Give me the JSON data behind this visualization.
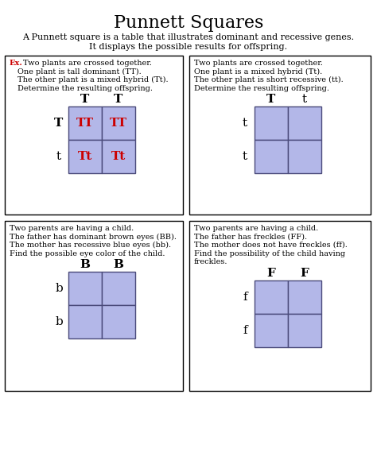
{
  "title": "Punnett Squares",
  "subtitle1": "A Punnett square is a table that illustrates dominant and recessive genes.",
  "subtitle2": "It displays the possible results for offspring.",
  "cell_color": "#b3b7e8",
  "cell_edgecolor": "#4a4a7a",
  "panels": [
    {
      "id": "top_left",
      "is_example": true,
      "ex_label": "Ex.",
      "text_lines": [
        "Two plants are crossed together.",
        "One plant is tall dominant (TT).",
        "The other plant is a mixed hybrid (Tt).",
        "Determine the resulting offspring."
      ],
      "col_headers": [
        "T",
        "T"
      ],
      "row_headers": [
        "T",
        "t"
      ],
      "col_header_bold": [
        true,
        true
      ],
      "row_header_bold": [
        true,
        false
      ],
      "cells": [
        [
          "TT",
          "TT"
        ],
        [
          "Tt",
          "Tt"
        ]
      ],
      "cell_text_color": "#cc0000",
      "cell_text_bold": true
    },
    {
      "id": "top_right",
      "is_example": false,
      "text_lines": [
        "Two plants are crossed together.",
        "One plant is a mixed hybrid (Tt).",
        "The other plant is short recessive (tt).",
        "Determine the resulting offspring."
      ],
      "col_headers": [
        "T",
        "t"
      ],
      "row_headers": [
        "t",
        "t"
      ],
      "col_header_bold": [
        true,
        false
      ],
      "row_header_bold": [
        false,
        false
      ],
      "cells": [
        [
          "",
          ""
        ],
        [
          "",
          ""
        ]
      ],
      "cell_text_color": "#cc0000",
      "cell_text_bold": true
    },
    {
      "id": "bottom_left",
      "is_example": false,
      "text_lines": [
        "Two parents are having a child.",
        "The father has dominant brown eyes (BB).",
        "The mother has recessive blue eyes (bb).",
        "Find the possible eye color of the child."
      ],
      "col_headers": [
        "B",
        "B"
      ],
      "row_headers": [
        "b",
        "b"
      ],
      "col_header_bold": [
        true,
        true
      ],
      "row_header_bold": [
        false,
        false
      ],
      "cells": [
        [
          "",
          ""
        ],
        [
          "",
          ""
        ]
      ],
      "cell_text_color": "#cc0000",
      "cell_text_bold": true
    },
    {
      "id": "bottom_right",
      "is_example": false,
      "text_lines": [
        "Two parents are having a child.",
        "The father has freckles (FF).",
        "The mother does not have freckles (ff).",
        "Find the possibility of the child having",
        "freckles."
      ],
      "col_headers": [
        "F",
        "F"
      ],
      "row_headers": [
        "f",
        "f"
      ],
      "col_header_bold": [
        true,
        true
      ],
      "row_header_bold": [
        false,
        false
      ],
      "cells": [
        [
          "",
          ""
        ],
        [
          "",
          ""
        ]
      ],
      "cell_text_color": "#cc0000",
      "cell_text_bold": true
    }
  ],
  "bg_color": "#ffffff",
  "panel_border_color": "#000000",
  "ex_color": "#cc0000",
  "title_fontsize": 16,
  "subtitle_fontsize": 8,
  "text_fontsize": 7,
  "header_fontsize": 11,
  "cell_fontsize": 11
}
